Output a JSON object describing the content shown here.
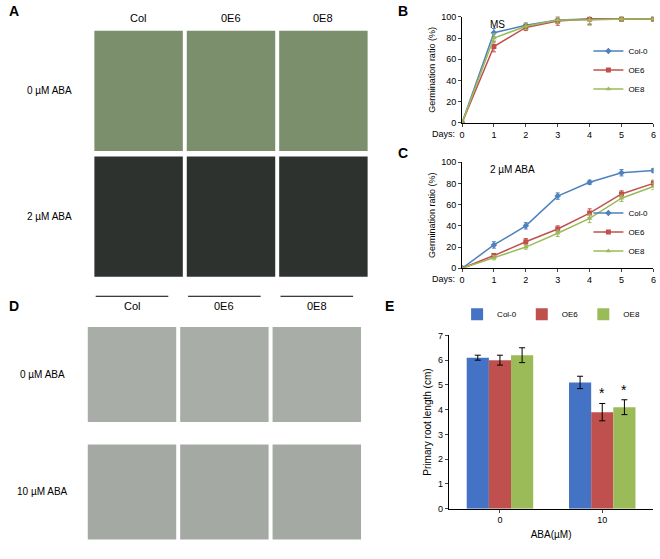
{
  "chart_data": [
    {
      "panel_label": "B",
      "type": "line",
      "annotations": [
        "MS"
      ],
      "xlabel": "Days:",
      "ylabel": "Germination ratio (%)",
      "x": [
        0,
        1,
        2,
        3,
        4,
        5,
        6
      ],
      "xlim": [
        0,
        6
      ],
      "xticks": [
        0,
        1,
        2,
        3,
        4,
        5,
        6
      ],
      "ylim": [
        0,
        100
      ],
      "yticks": [
        0,
        20,
        40,
        60,
        80,
        100
      ],
      "grid": false,
      "legend": "right",
      "series": [
        {
          "name": "Col-0",
          "color": "#4f81bd",
          "marker": "diamond",
          "line_style": "solid",
          "values": [
            0,
            85,
            92,
            97,
            98,
            98,
            98
          ],
          "errors": [
            0,
            4,
            2,
            3,
            5,
            2,
            2
          ]
        },
        {
          "name": "OE6",
          "color": "#c0504d",
          "marker": "square",
          "line_style": "solid",
          "values": [
            0,
            72,
            90,
            96,
            98,
            98,
            98
          ],
          "errors": [
            0,
            5,
            3,
            4,
            5,
            2,
            2
          ]
        },
        {
          "name": "OE8",
          "color": "#9bbb59",
          "marker": "triangle",
          "line_style": "solid",
          "values": [
            0,
            80,
            91,
            97,
            97,
            98,
            98
          ],
          "errors": [
            0,
            4,
            3,
            3,
            5,
            2,
            2
          ]
        }
      ]
    },
    {
      "panel_label": "C",
      "type": "line",
      "annotations": [
        "2 µM ABA"
      ],
      "xlabel": "Days:",
      "ylabel": "Germination ratio (%)",
      "x": [
        0,
        1,
        2,
        3,
        4,
        5,
        6
      ],
      "xlim": [
        0,
        6
      ],
      "xticks": [
        0,
        1,
        2,
        3,
        4,
        5,
        6
      ],
      "ylim": [
        0,
        100
      ],
      "yticks": [
        0,
        20,
        40,
        60,
        80,
        100
      ],
      "grid": false,
      "legend": "lower right",
      "series": [
        {
          "name": "Col-0",
          "color": "#4f81bd",
          "marker": "diamond",
          "line_style": "solid",
          "values": [
            0,
            22,
            40,
            68,
            81,
            90,
            92
          ],
          "errors": [
            0,
            3,
            3,
            3,
            2,
            3,
            2
          ]
        },
        {
          "name": "OE6",
          "color": "#c0504d",
          "marker": "square",
          "line_style": "solid",
          "values": [
            0,
            12,
            25,
            37,
            52,
            70,
            80
          ],
          "errors": [
            0,
            2,
            3,
            3,
            4,
            3,
            3
          ]
        },
        {
          "name": "OE8",
          "color": "#9bbb59",
          "marker": "triangle",
          "line_style": "solid",
          "values": [
            0,
            10,
            20,
            33,
            47,
            66,
            77
          ],
          "errors": [
            0,
            2,
            2,
            3,
            4,
            3,
            3
          ]
        }
      ]
    },
    {
      "panel_label": "E",
      "type": "bar",
      "categories": [
        "0",
        "10"
      ],
      "xlabel": "ABA(µM)",
      "ylabel": "Primary root length (cm)",
      "ylim": [
        0,
        7
      ],
      "yticks": [
        0,
        1,
        2,
        3,
        4,
        5,
        6,
        7
      ],
      "grid": false,
      "legend": "top",
      "series": [
        {
          "name": "Col-0",
          "color": "#4472c4",
          "values": [
            6.1,
            5.1
          ],
          "errors": [
            0.1,
            0.25
          ],
          "significance": [
            null,
            null
          ]
        },
        {
          "name": "OE6",
          "color": "#c0504d",
          "values": [
            6.0,
            3.9
          ],
          "errors": [
            0.2,
            0.35
          ],
          "significance": [
            null,
            "*"
          ]
        },
        {
          "name": "OE8",
          "color": "#9bbb59",
          "values": [
            6.2,
            4.1
          ],
          "errors": [
            0.3,
            0.3
          ],
          "significance": [
            null,
            "*"
          ]
        }
      ]
    }
  ],
  "photo_panels": [
    {
      "label": "A",
      "columns": [
        "Col",
        "0E6",
        "0E8"
      ],
      "rows": [
        "0 µM ABA",
        "2 µM ABA"
      ]
    },
    {
      "label": "D",
      "columns": [
        "Col",
        "0E6",
        "0E8"
      ],
      "rows": [
        "0 µM ABA",
        "10 µM ABA"
      ]
    }
  ]
}
